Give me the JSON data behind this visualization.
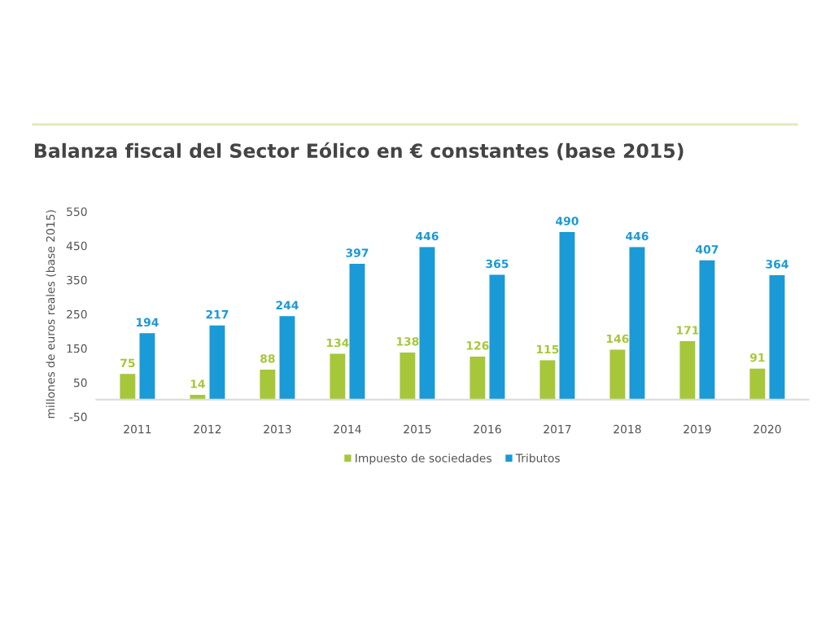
{
  "chart_data": {
    "type": "bar",
    "title": "Balanza fiscal del Sector Eólico en € constantes (base 2015)",
    "ylabel": "millones de euros reales (base 2015)",
    "categories": [
      "2011",
      "2012",
      "2013",
      "2014",
      "2015",
      "2016",
      "2017",
      "2018",
      "2019",
      "2020"
    ],
    "series": [
      {
        "name": "Impuesto de sociedades",
        "color": "#a6c73a",
        "values": [
          75,
          14,
          88,
          134,
          138,
          126,
          115,
          146,
          171,
          91
        ]
      },
      {
        "name": "Tributos",
        "color": "#1a9ad6",
        "values": [
          194,
          217,
          244,
          397,
          446,
          365,
          490,
          446,
          407,
          364
        ]
      }
    ],
    "ylim": [
      -50,
      550
    ],
    "yticks": [
      -50,
      50,
      150,
      250,
      350,
      450,
      550
    ],
    "data_labels": true,
    "grid": false,
    "legend": "bottom"
  }
}
